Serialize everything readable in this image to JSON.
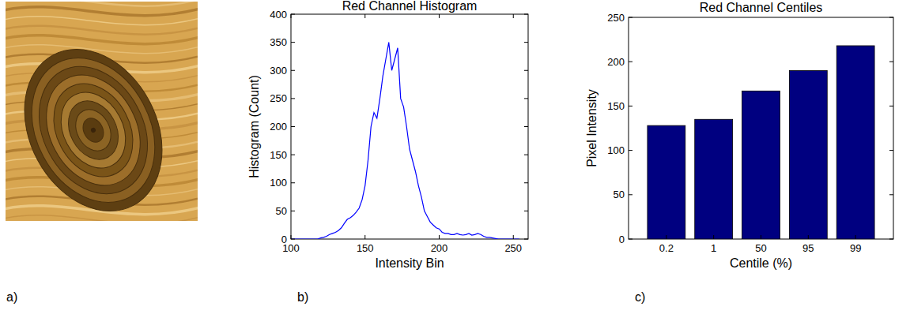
{
  "image_panel": {
    "label": "a)"
  },
  "chart_data": [
    {
      "type": "line",
      "label": "b)",
      "title": "Red Channel Histogram",
      "x_label": "Intensity Bin",
      "y_label": "Histogram (Count)",
      "x": [
        100,
        102,
        104,
        106,
        108,
        110,
        112,
        114,
        116,
        118,
        120,
        122,
        124,
        126,
        128,
        130,
        132,
        134,
        136,
        138,
        140,
        142,
        144,
        146,
        148,
        150,
        152,
        154,
        156,
        158,
        160,
        162,
        164,
        166,
        168,
        170,
        172,
        174,
        176,
        178,
        180,
        182,
        184,
        186,
        188,
        190,
        192,
        194,
        196,
        198,
        200,
        202,
        204,
        206,
        208,
        210,
        212,
        214,
        216,
        218,
        220,
        222,
        224,
        226,
        228,
        230,
        232,
        234,
        236,
        238,
        240,
        242,
        244,
        246,
        248,
        250,
        252,
        254
      ],
      "values": [
        0,
        0,
        0,
        0,
        0,
        0,
        0,
        0,
        0,
        0,
        2,
        3,
        5,
        8,
        10,
        12,
        15,
        20,
        28,
        35,
        38,
        42,
        48,
        55,
        70,
        95,
        140,
        200,
        225,
        215,
        250,
        290,
        320,
        350,
        300,
        320,
        340,
        250,
        235,
        200,
        160,
        140,
        120,
        95,
        75,
        50,
        40,
        30,
        25,
        20,
        18,
        12,
        10,
        10,
        8,
        8,
        10,
        8,
        7,
        8,
        10,
        7,
        8,
        10,
        8,
        5,
        3,
        3,
        2,
        1,
        0,
        0,
        0,
        0,
        0,
        0,
        0,
        0
      ],
      "color": "#0000ff",
      "xlim": [
        100,
        260
      ],
      "xticks": [
        100,
        150,
        200,
        250
      ],
      "ylim": [
        0,
        400
      ],
      "yticks": [
        0,
        50,
        100,
        150,
        200,
        250,
        300,
        350,
        400
      ]
    },
    {
      "type": "bar",
      "label": "c)",
      "title": "Red Channel Centiles",
      "x_label": "Centile (%)",
      "y_label": "Pixel Intensity",
      "categories": [
        "0.2",
        "1",
        "50",
        "95",
        "99"
      ],
      "values": [
        128,
        135,
        167,
        190,
        218
      ],
      "color": "#000080",
      "ylim": [
        0,
        250
      ],
      "yticks": [
        0,
        50,
        100,
        150,
        200,
        250
      ]
    }
  ]
}
